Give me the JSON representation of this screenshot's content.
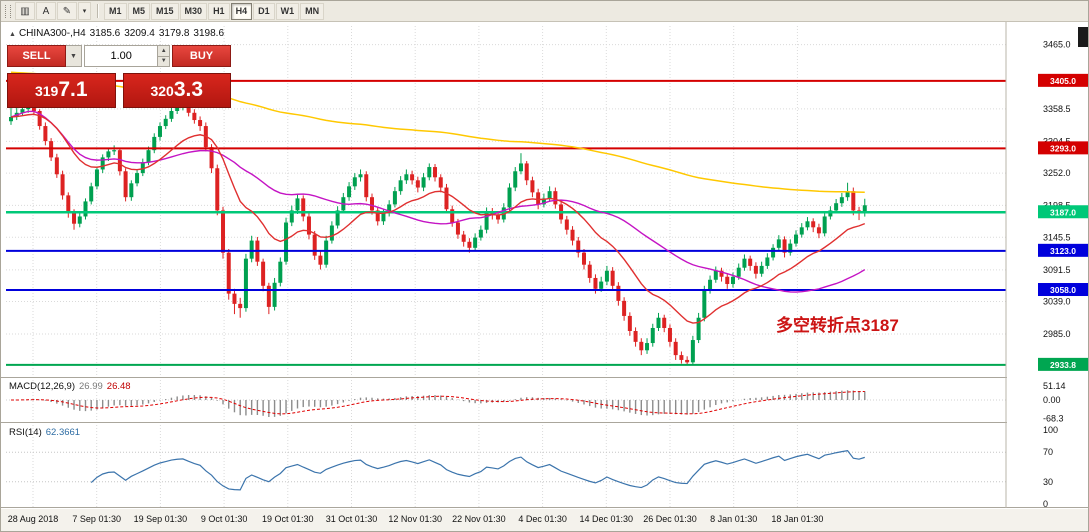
{
  "toolbar": {
    "tools": [
      {
        "name": "chart-type-icon",
        "glyph": "▥"
      },
      {
        "name": "text-tool-icon",
        "glyph": "A"
      },
      {
        "name": "draw-tool-icon",
        "glyph": "✎"
      }
    ],
    "draw_dropdown_glyph": "▾",
    "timeframes": [
      "M1",
      "M5",
      "M15",
      "M30",
      "H1",
      "H4",
      "D1",
      "W1",
      "MN"
    ],
    "active_timeframe": "H4"
  },
  "chart_header": {
    "icon_glyph": "▲",
    "symbol": "CHINA300-,H4",
    "open": "3185.6",
    "high": "3209.4",
    "low": "3179.8",
    "close": "3198.6"
  },
  "trade_panel": {
    "sell_label": "SELL",
    "buy_label": "BUY",
    "lot_value": "1.00",
    "dropdown_glyph": "▼",
    "spin_up_glyph": "▲",
    "spin_down_glyph": "▼",
    "sell_price": "3197.1",
    "buy_price": "3203.3"
  },
  "annotation": {
    "text": "多空转折点3187",
    "color": "#cc1414"
  },
  "price_axis": {
    "ticks": [
      "3465.0",
      "3358.5",
      "3304.5",
      "3252.0",
      "3198.5",
      "3145.5",
      "3091.5",
      "3039.0",
      "2985.0"
    ]
  },
  "time_axis": {
    "labels": [
      "28 Aug 2018",
      "7 Sep 01:30",
      "19 Sep 01:30",
      "9 Oct 01:30",
      "19 Oct 01:30",
      "31 Oct 01:30",
      "12 Nov 01:30",
      "22 Nov 01:30",
      "4 Dec 01:30",
      "14 Dec 01:30",
      "26 Dec 01:30",
      "8 Jan 01:30",
      "18 Jan 01:30"
    ]
  },
  "indicators": {
    "macd": {
      "label": "MACD(12,26,9)",
      "value1": "26.99",
      "value2": "26.48",
      "axis": [
        "51.14",
        "0.00",
        "-68.3"
      ]
    },
    "rsi": {
      "label": "RSI(14)",
      "value": "62.3661",
      "axis": [
        "100",
        "70",
        "30",
        "0"
      ],
      "levels": [
        70,
        30
      ]
    }
  },
  "chart_data": {
    "type": "candlestick",
    "symbol": "CHINA300-",
    "timeframe": "H4",
    "current_ohlc": {
      "open": 3185.6,
      "high": 3209.4,
      "low": 3179.8,
      "close": 3198.6
    },
    "y_range": [
      2917,
      3496
    ],
    "horizontal_lines": [
      {
        "price": 3405.0,
        "label": "3405.0",
        "color": "#d40000",
        "width": 2
      },
      {
        "price": 3293.0,
        "label": "3293.0",
        "color": "#d40000",
        "width": 2
      },
      {
        "price": 3187.0,
        "label": "3187.0",
        "color": "#00c878",
        "width": 2.5
      },
      {
        "price": 3123.0,
        "label": "3123.0",
        "color": "#0000dc",
        "width": 2
      },
      {
        "price": 3058.0,
        "label": "3058.0",
        "color": "#0000dc",
        "width": 2
      },
      {
        "price": 2933.8,
        "label": "2933.8",
        "color": "#00a651",
        "width": 2
      }
    ],
    "colors": {
      "up": "#00a050",
      "down": "#dd2222",
      "ma_slow_yellow": "#ffc800",
      "ma_medium_magenta": "#c414c4",
      "ma_fast_red": "#e03030",
      "macd_hist": "#8c8c8c",
      "macd_signal": "#e00000",
      "rsi_line": "#3b74ac"
    },
    "candles": [
      [
        3338,
        3368,
        3332,
        3345
      ],
      [
        3345,
        3360,
        3340,
        3352
      ],
      [
        3352,
        3364,
        3347,
        3358
      ],
      [
        3358,
        3370,
        3352,
        3362
      ],
      [
        3362,
        3366,
        3348,
        3355
      ],
      [
        3355,
        3358,
        3324,
        3330
      ],
      [
        3330,
        3336,
        3298,
        3305
      ],
      [
        3305,
        3310,
        3272,
        3278
      ],
      [
        3278,
        3284,
        3244,
        3250
      ],
      [
        3250,
        3256,
        3208,
        3215
      ],
      [
        3215,
        3220,
        3178,
        3185
      ],
      [
        3185,
        3192,
        3158,
        3168
      ],
      [
        3168,
        3186,
        3162,
        3180
      ],
      [
        3180,
        3210,
        3175,
        3205
      ],
      [
        3205,
        3236,
        3200,
        3230
      ],
      [
        3230,
        3263,
        3225,
        3258
      ],
      [
        3258,
        3283,
        3252,
        3278
      ],
      [
        3278,
        3294,
        3272,
        3288
      ],
      [
        3288,
        3298,
        3282,
        3290
      ],
      [
        3290,
        3294,
        3248,
        3255
      ],
      [
        3255,
        3260,
        3205,
        3212
      ],
      [
        3212,
        3240,
        3206,
        3235
      ],
      [
        3235,
        3258,
        3230,
        3252
      ],
      [
        3252,
        3276,
        3247,
        3270
      ],
      [
        3270,
        3296,
        3265,
        3290
      ],
      [
        3290,
        3318,
        3285,
        3312
      ],
      [
        3312,
        3336,
        3306,
        3330
      ],
      [
        3330,
        3348,
        3325,
        3342
      ],
      [
        3342,
        3360,
        3337,
        3355
      ],
      [
        3355,
        3368,
        3350,
        3362
      ],
      [
        3362,
        3375,
        3356,
        3365
      ],
      [
        3365,
        3370,
        3346,
        3352
      ],
      [
        3352,
        3358,
        3334,
        3340
      ],
      [
        3340,
        3346,
        3322,
        3330
      ],
      [
        3330,
        3336,
        3288,
        3295
      ],
      [
        3295,
        3300,
        3252,
        3260
      ],
      [
        3260,
        3266,
        3182,
        3190
      ],
      [
        3190,
        3196,
        3110,
        3120
      ],
      [
        3120,
        3126,
        3042,
        3052
      ],
      [
        3052,
        3060,
        3018,
        3035
      ],
      [
        3035,
        3045,
        3012,
        3028
      ],
      [
        3028,
        3118,
        3022,
        3110
      ],
      [
        3110,
        3148,
        3104,
        3140
      ],
      [
        3140,
        3146,
        3098,
        3105
      ],
      [
        3105,
        3110,
        3056,
        3065
      ],
      [
        3065,
        3070,
        3018,
        3030
      ],
      [
        3030,
        3078,
        3024,
        3070
      ],
      [
        3070,
        3112,
        3064,
        3105
      ],
      [
        3105,
        3178,
        3100,
        3170
      ],
      [
        3170,
        3198,
        3164,
        3190
      ],
      [
        3190,
        3218,
        3184,
        3210
      ],
      [
        3210,
        3215,
        3172,
        3180
      ],
      [
        3180,
        3186,
        3142,
        3150
      ],
      [
        3150,
        3156,
        3108,
        3115
      ],
      [
        3115,
        3122,
        3092,
        3100
      ],
      [
        3100,
        3148,
        3095,
        3140
      ],
      [
        3140,
        3172,
        3135,
        3165
      ],
      [
        3165,
        3197,
        3160,
        3190
      ],
      [
        3190,
        3219,
        3185,
        3212
      ],
      [
        3212,
        3237,
        3206,
        3230
      ],
      [
        3230,
        3252,
        3224,
        3245
      ],
      [
        3245,
        3258,
        3238,
        3250
      ],
      [
        3250,
        3255,
        3205,
        3212
      ],
      [
        3212,
        3218,
        3183,
        3190
      ],
      [
        3190,
        3196,
        3165,
        3172
      ],
      [
        3172,
        3192,
        3166,
        3185
      ],
      [
        3185,
        3207,
        3180,
        3200
      ],
      [
        3200,
        3229,
        3195,
        3222
      ],
      [
        3222,
        3247,
        3216,
        3240
      ],
      [
        3240,
        3258,
        3234,
        3250
      ],
      [
        3250,
        3256,
        3233,
        3240
      ],
      [
        3240,
        3246,
        3220,
        3228
      ],
      [
        3228,
        3252,
        3222,
        3245
      ],
      [
        3245,
        3268,
        3240,
        3262
      ],
      [
        3262,
        3267,
        3238,
        3245
      ],
      [
        3245,
        3250,
        3220,
        3228
      ],
      [
        3228,
        3234,
        3185,
        3192
      ],
      [
        3192,
        3198,
        3163,
        3170
      ],
      [
        3170,
        3176,
        3143,
        3150
      ],
      [
        3150,
        3156,
        3130,
        3138
      ],
      [
        3138,
        3144,
        3120,
        3128
      ],
      [
        3128,
        3152,
        3122,
        3145
      ],
      [
        3145,
        3165,
        3140,
        3158
      ],
      [
        3158,
        3195,
        3152,
        3188
      ],
      [
        3188,
        3194,
        3175,
        3182
      ],
      [
        3182,
        3188,
        3168,
        3175
      ],
      [
        3175,
        3202,
        3170,
        3195
      ],
      [
        3195,
        3235,
        3190,
        3228
      ],
      [
        3228,
        3262,
        3222,
        3255
      ],
      [
        3255,
        3285,
        3250,
        3268
      ],
      [
        3268,
        3272,
        3232,
        3240
      ],
      [
        3240,
        3246,
        3212,
        3220
      ],
      [
        3220,
        3226,
        3192,
        3200
      ],
      [
        3200,
        3218,
        3195,
        3210
      ],
      [
        3210,
        3230,
        3204,
        3222
      ],
      [
        3222,
        3228,
        3193,
        3200
      ],
      [
        3200,
        3206,
        3168,
        3175
      ],
      [
        3175,
        3181,
        3150,
        3158
      ],
      [
        3158,
        3164,
        3132,
        3140
      ],
      [
        3140,
        3146,
        3112,
        3120
      ],
      [
        3120,
        3126,
        3092,
        3100
      ],
      [
        3100,
        3106,
        3070,
        3078
      ],
      [
        3078,
        3084,
        3052,
        3060
      ],
      [
        3060,
        3080,
        3055,
        3072
      ],
      [
        3072,
        3098,
        3066,
        3090
      ],
      [
        3090,
        3096,
        3058,
        3065
      ],
      [
        3065,
        3071,
        3032,
        3040
      ],
      [
        3040,
        3046,
        3007,
        3015
      ],
      [
        3015,
        3021,
        2982,
        2990
      ],
      [
        2990,
        2996,
        2964,
        2972
      ],
      [
        2972,
        2978,
        2950,
        2958
      ],
      [
        2958,
        2978,
        2952,
        2970
      ],
      [
        2970,
        3002,
        2964,
        2995
      ],
      [
        2995,
        3020,
        2990,
        3012
      ],
      [
        3012,
        3017,
        2988,
        2995
      ],
      [
        2995,
        3001,
        2964,
        2972
      ],
      [
        2972,
        2978,
        2942,
        2950
      ],
      [
        2950,
        2956,
        2936,
        2942
      ],
      [
        2942,
        2948,
        2934,
        2938
      ],
      [
        2938,
        2982,
        2934,
        2975
      ],
      [
        2975,
        3020,
        2970,
        3012
      ],
      [
        3012,
        3065,
        3006,
        3058
      ],
      [
        3058,
        3082,
        3052,
        3075
      ],
      [
        3075,
        3097,
        3070,
        3090
      ],
      [
        3090,
        3095,
        3072,
        3080
      ],
      [
        3080,
        3086,
        3060,
        3068
      ],
      [
        3068,
        3087,
        3062,
        3080
      ],
      [
        3080,
        3102,
        3075,
        3095
      ],
      [
        3095,
        3117,
        3090,
        3110
      ],
      [
        3110,
        3115,
        3090,
        3098
      ],
      [
        3098,
        3104,
        3077,
        3085
      ],
      [
        3085,
        3105,
        3080,
        3098
      ],
      [
        3098,
        3119,
        3093,
        3112
      ],
      [
        3112,
        3134,
        3107,
        3128
      ],
      [
        3128,
        3149,
        3122,
        3142
      ],
      [
        3142,
        3147,
        3112,
        3120
      ],
      [
        3120,
        3142,
        3115,
        3135
      ],
      [
        3135,
        3157,
        3130,
        3150
      ],
      [
        3150,
        3169,
        3145,
        3162
      ],
      [
        3162,
        3179,
        3157,
        3172
      ],
      [
        3172,
        3177,
        3154,
        3162
      ],
      [
        3162,
        3168,
        3144,
        3152
      ],
      [
        3152,
        3187,
        3147,
        3180
      ],
      [
        3180,
        3197,
        3175,
        3190
      ],
      [
        3190,
        3209,
        3185,
        3202
      ],
      [
        3202,
        3219,
        3196,
        3212
      ],
      [
        3212,
        3236,
        3206,
        3222
      ],
      [
        3222,
        3228,
        3182,
        3190
      ],
      [
        3190,
        3196,
        3174,
        3185.6
      ],
      [
        3185.6,
        3209.4,
        3179.8,
        3198.6
      ]
    ]
  }
}
